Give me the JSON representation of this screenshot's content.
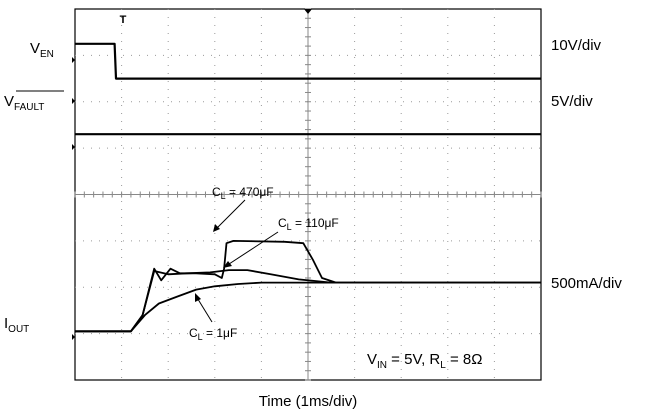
{
  "chart_data": {
    "type": "line",
    "x_unit": "ms",
    "x_divisions": 10,
    "y_divisions": 8,
    "xlabel": "Time (1ms/div)",
    "trigger_marker": "T",
    "channels": [
      {
        "name_main": "V",
        "name_sub": "EN",
        "scale": "10V/div"
      },
      {
        "name_main": "V",
        "name_sub": "FAULT",
        "scale": "5V/div"
      },
      {
        "name_main": "I",
        "name_sub": "OUT",
        "scale": "500mA/div"
      }
    ],
    "annotations": [
      {
        "pre": "C",
        "sub": "L",
        "post": " = 470μF"
      },
      {
        "pre": "C",
        "sub": "L",
        "post": " = 110μF"
      },
      {
        "pre": "C",
        "sub": "L",
        "post": " = 1μF"
      }
    ],
    "conditions": {
      "vin_main": "V",
      "vin_sub": "IN",
      "vin_rest": " = 5V, ",
      "rl_main": "R",
      "rl_sub": "L",
      "rl_rest": " = 8Ω"
    },
    "series": [
      {
        "points": [
          [
            0,
            -3.25
          ],
          [
            0.85,
            -3.25
          ],
          [
            0.88,
            -2.5
          ],
          [
            10,
            -2.5
          ]
        ]
      },
      {
        "points": [
          [
            0,
            -1.3
          ],
          [
            10,
            -1.3
          ]
        ]
      },
      {
        "points": [
          [
            0,
            2.95
          ],
          [
            1.2,
            2.95
          ],
          [
            1.45,
            2.6
          ],
          [
            1.7,
            1.6
          ],
          [
            1.85,
            1.85
          ],
          [
            2.05,
            1.6
          ],
          [
            2.25,
            1.7
          ],
          [
            2.6,
            1.7
          ],
          [
            3.0,
            1.72
          ],
          [
            3.15,
            1.8
          ],
          [
            3.2,
            1.6
          ],
          [
            3.25,
            1.05
          ],
          [
            3.4,
            1.0
          ],
          [
            4.5,
            1.02
          ],
          [
            4.9,
            1.05
          ],
          [
            5.1,
            1.4
          ],
          [
            5.3,
            1.8
          ],
          [
            5.6,
            1.9
          ],
          [
            10,
            1.9
          ]
        ]
      },
      {
        "points": [
          [
            0,
            2.95
          ],
          [
            1.2,
            2.95
          ],
          [
            1.45,
            2.6
          ],
          [
            1.7,
            1.65
          ],
          [
            2.0,
            1.72
          ],
          [
            2.4,
            1.7
          ],
          [
            2.9,
            1.68
          ],
          [
            3.3,
            1.63
          ],
          [
            3.7,
            1.63
          ],
          [
            4.2,
            1.72
          ],
          [
            4.8,
            1.83
          ],
          [
            5.5,
            1.9
          ],
          [
            10,
            1.9
          ]
        ]
      },
      {
        "points": [
          [
            0,
            2.95
          ],
          [
            1.2,
            2.95
          ],
          [
            1.5,
            2.6
          ],
          [
            1.8,
            2.35
          ],
          [
            2.2,
            2.2
          ],
          [
            2.6,
            2.05
          ],
          [
            3.0,
            1.98
          ],
          [
            3.5,
            1.93
          ],
          [
            4.0,
            1.9
          ],
          [
            10,
            1.9
          ]
        ]
      }
    ]
  }
}
